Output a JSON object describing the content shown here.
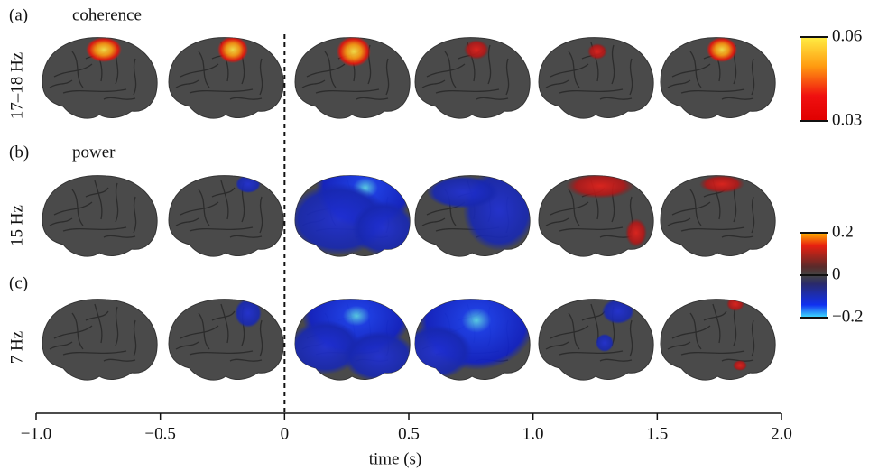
{
  "panels": [
    {
      "letter": "(a)",
      "title": "coherence",
      "row_label": "17–18 Hz"
    },
    {
      "letter": "(b)",
      "title": "power",
      "row_label": "15 Hz"
    },
    {
      "letter": "(c)",
      "row_label": "7 Hz"
    }
  ],
  "colorbars": [
    {
      "range": [
        0.03,
        0.06
      ],
      "ticks": [
        0.06,
        0.03
      ]
    },
    {
      "range": [
        -0.2,
        0.2
      ],
      "ticks": [
        0.2,
        0,
        {
          "value": -0.2,
          "label": "−0.2"
        }
      ]
    }
  ],
  "time_axis": {
    "label": "time (s)",
    "xlim": [
      -1.0,
      2.0
    ],
    "xticks": [
      {
        "value": -1.0,
        "label": "−1.0"
      },
      {
        "value": -0.5,
        "label": "−0.5"
      },
      0,
      0.5,
      {
        "value": 1.0,
        "label": "1.0"
      },
      1.5,
      {
        "value": 2.0,
        "label": "2.0"
      }
    ]
  }
}
